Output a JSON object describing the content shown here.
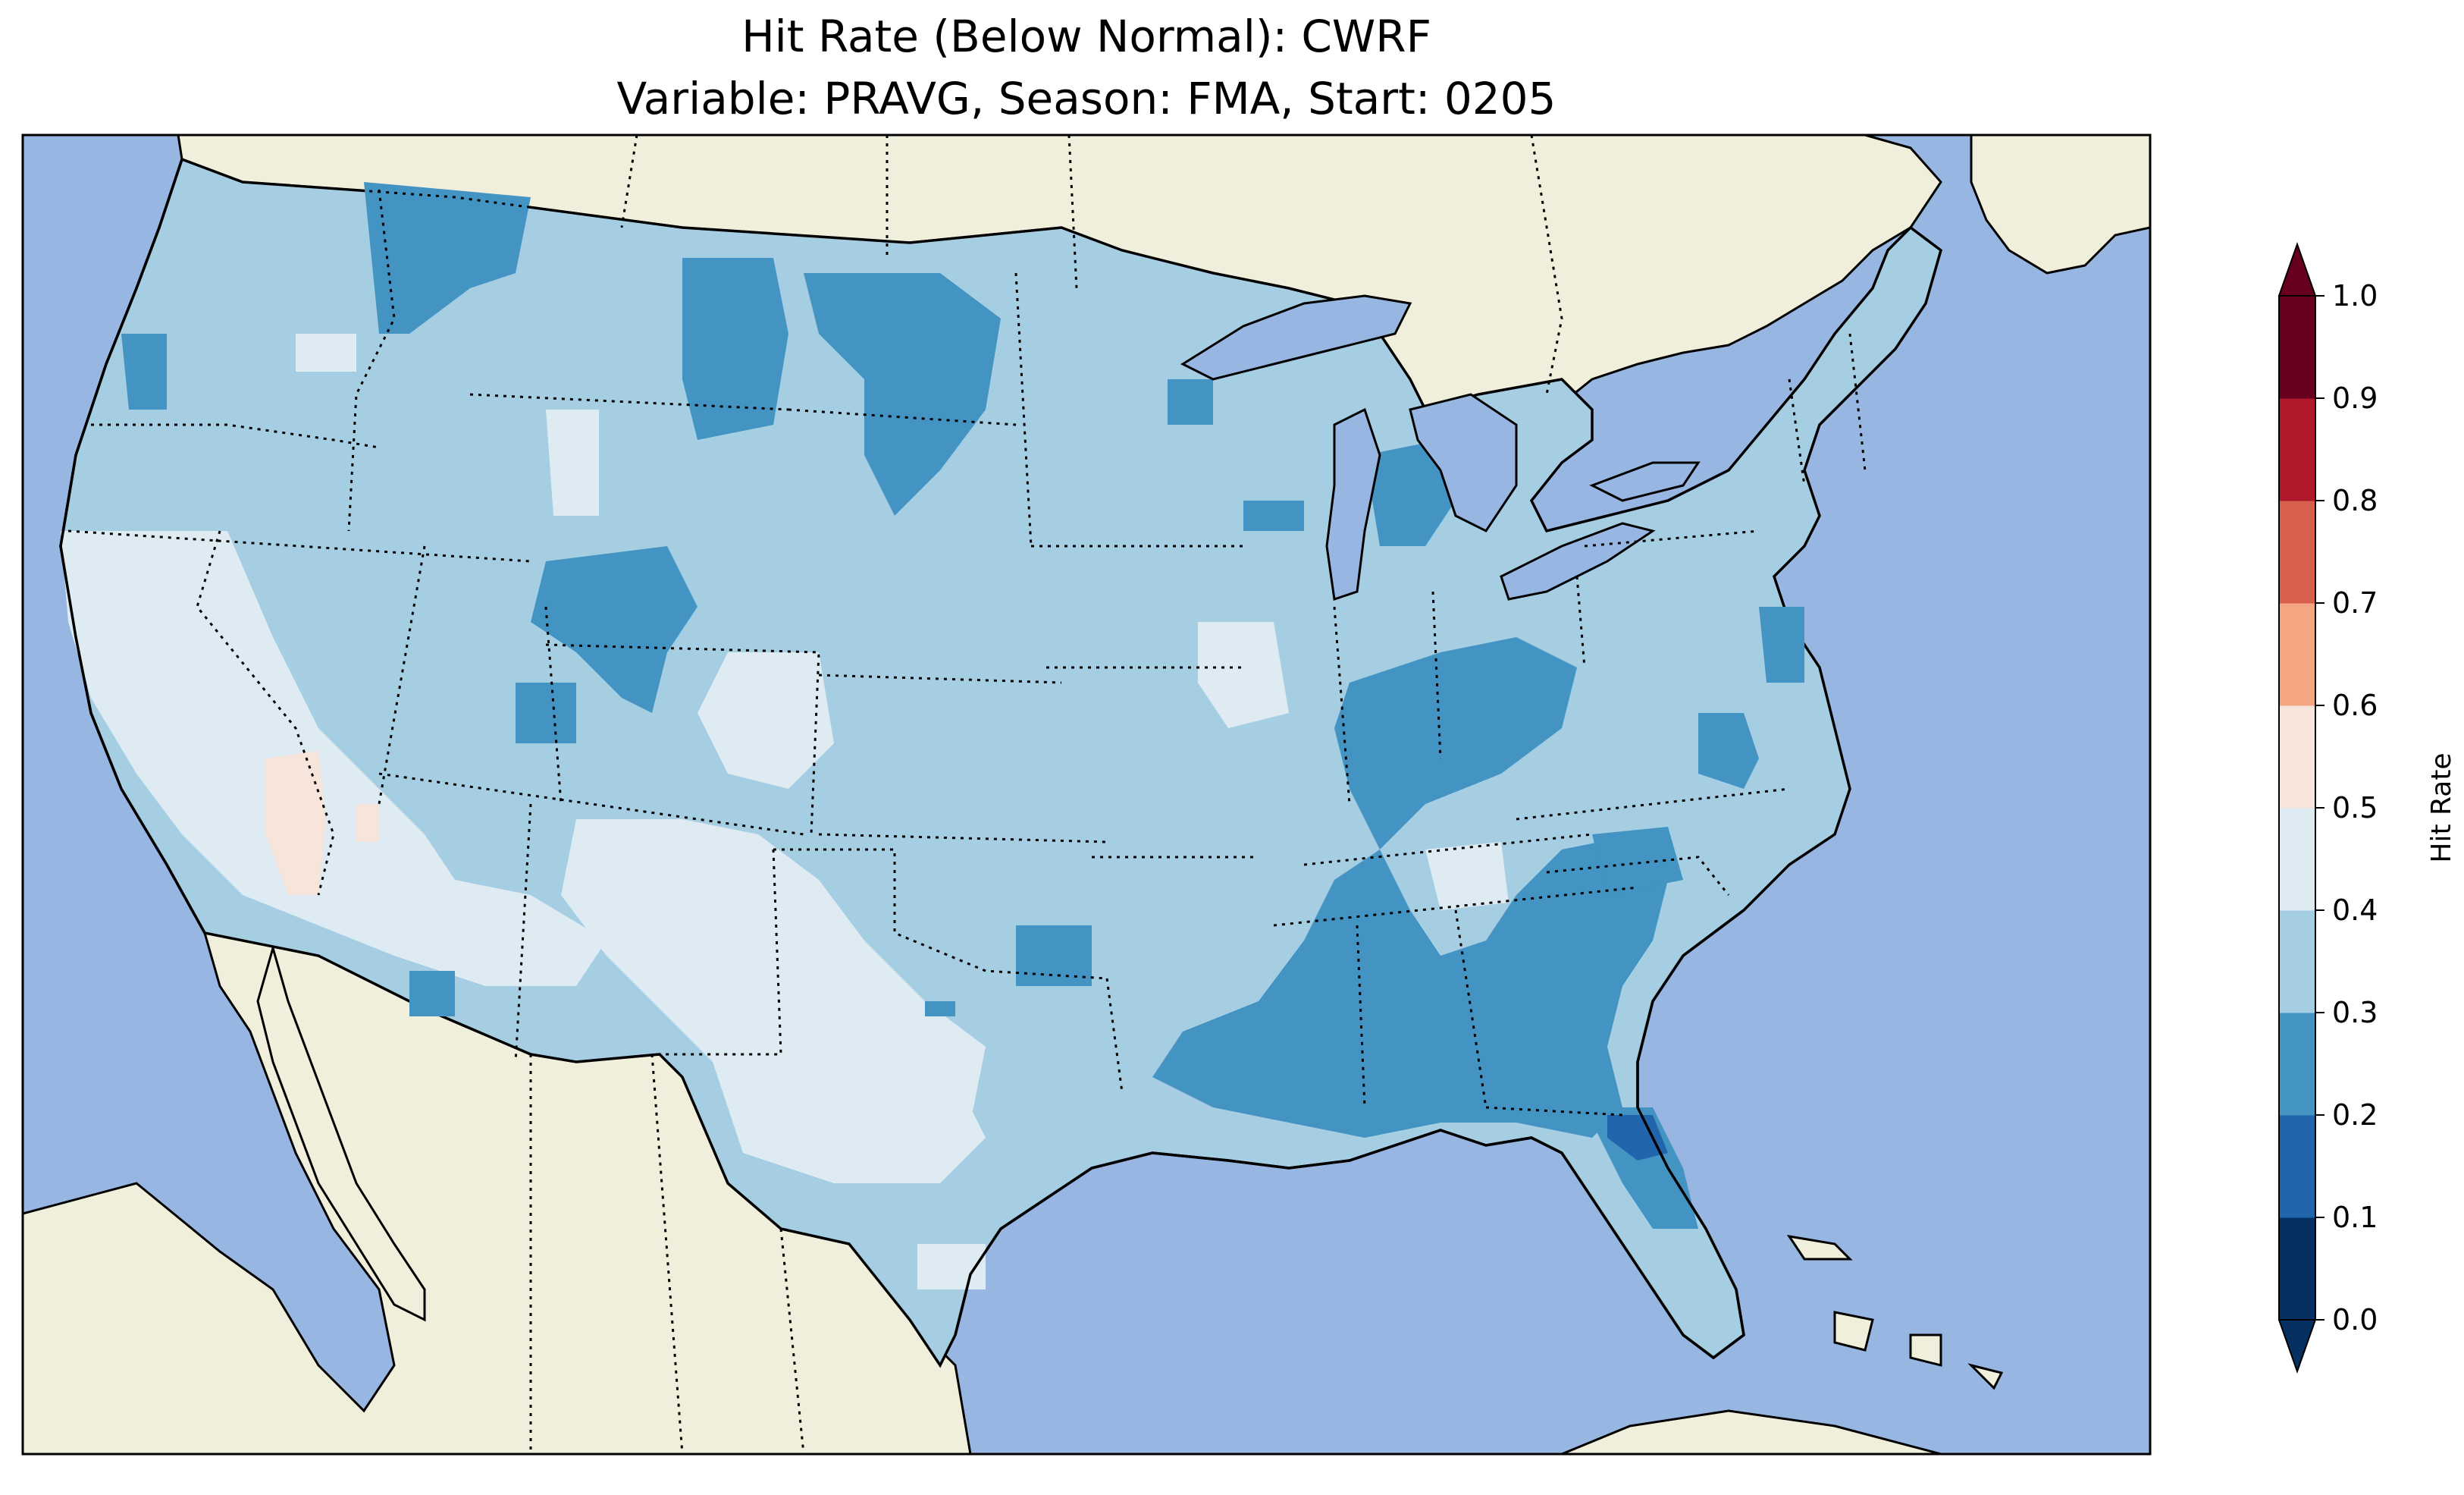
{
  "figure": {
    "title_line1": "Hit Rate (Below Normal): CWRF",
    "title_line2": "Variable: PRAVG, Season: FMA, Start: 0205"
  },
  "map": {
    "ocean_color": "#97b6e1",
    "land_color": "#efefdb",
    "lake_color": "#97b6e1",
    "coastline_color": "#000000",
    "border_style": "dotted",
    "region": "Contiguous United States",
    "dominant_range": "0.3–0.4",
    "notable_low_region": "Southeast (0.2–0.3), Florida east coast pocket (0.1–0.2)",
    "notable_high_region": "Southern Nevada / western Arizona (0.5–0.6)"
  },
  "colorbar": {
    "label": "Hit Rate",
    "ticks": [
      "0.0",
      "0.1",
      "0.2",
      "0.3",
      "0.4",
      "0.5",
      "0.6",
      "0.7",
      "0.8",
      "0.9",
      "1.0"
    ],
    "bins": [
      {
        "range": "0.0–0.1",
        "color": "#053061"
      },
      {
        "range": "0.1–0.2",
        "color": "#2166ac"
      },
      {
        "range": "0.2–0.3",
        "color": "#4393c3"
      },
      {
        "range": "0.3–0.4",
        "color": "#a6cee3"
      },
      {
        "range": "0.4–0.5",
        "color": "#deebf2"
      },
      {
        "range": "0.5–0.6",
        "color": "#f7e4da"
      },
      {
        "range": "0.6–0.7",
        "color": "#f4a582"
      },
      {
        "range": "0.7–0.8",
        "color": "#d6604d"
      },
      {
        "range": "0.8–0.9",
        "color": "#b2182b"
      },
      {
        "range": "0.9–1.0",
        "color": "#67001f"
      }
    ],
    "extend": "both"
  }
}
